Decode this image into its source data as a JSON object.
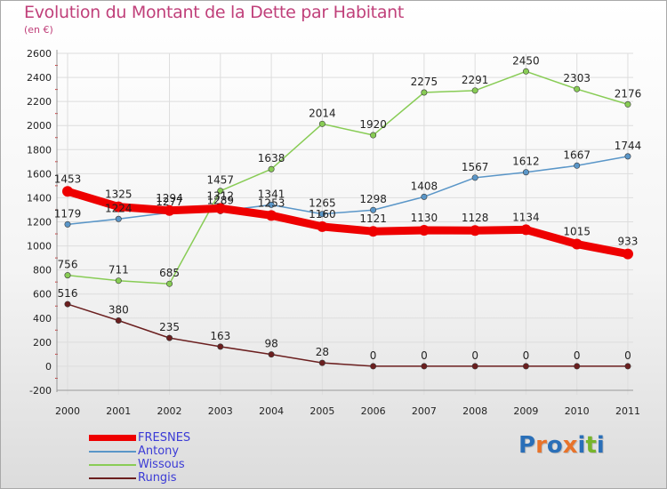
{
  "title": "Evolution du Montant de la Dette par Habitant",
  "subtitle": "(en €)",
  "brand": {
    "text": "Proxiti",
    "colors": [
      "#2a6fb8",
      "#e8732a",
      "#2a6fb8",
      "#e8732a",
      "#2a6fb8",
      "#77b52b",
      "#2a6fb8"
    ]
  },
  "chart_data": {
    "type": "line",
    "categories": [
      "2000",
      "2001",
      "2002",
      "2003",
      "2004",
      "2005",
      "2006",
      "2007",
      "2008",
      "2009",
      "2010",
      "2011"
    ],
    "ylim": [
      -200,
      2600
    ],
    "yticks": [
      "-200",
      "0",
      "200",
      "400",
      "600",
      "800",
      "1000",
      "1200",
      "1400",
      "1600",
      "1800",
      "2000",
      "2200",
      "2400",
      "2600"
    ],
    "grid": true,
    "legend_position": "bottom-left",
    "series": [
      {
        "name": "Rungis",
        "color": "#6b1f1f",
        "values": [
          516,
          380,
          235,
          163,
          98,
          28,
          0,
          0,
          0,
          0,
          0,
          0
        ]
      },
      {
        "name": "Wissous",
        "color": "#88cc55",
        "values": [
          756,
          711,
          685,
          1457,
          1638,
          2014,
          1920,
          2275,
          2291,
          2450,
          2303,
          2176
        ]
      },
      {
        "name": "Antony",
        "color": "#5a96c8",
        "values": [
          1179,
          1224,
          1277,
          1289,
          1341,
          1265,
          1298,
          1408,
          1567,
          1612,
          1667,
          1744
        ]
      },
      {
        "name": "FRESNES",
        "color": "#ee0000",
        "values": [
          1453,
          1325,
          1294,
          1312,
          1253,
          1160,
          1121,
          1130,
          1128,
          1134,
          1015,
          933
        ]
      }
    ],
    "legend_order": [
      "FRESNES",
      "Antony",
      "Wissous",
      "Rungis"
    ]
  }
}
